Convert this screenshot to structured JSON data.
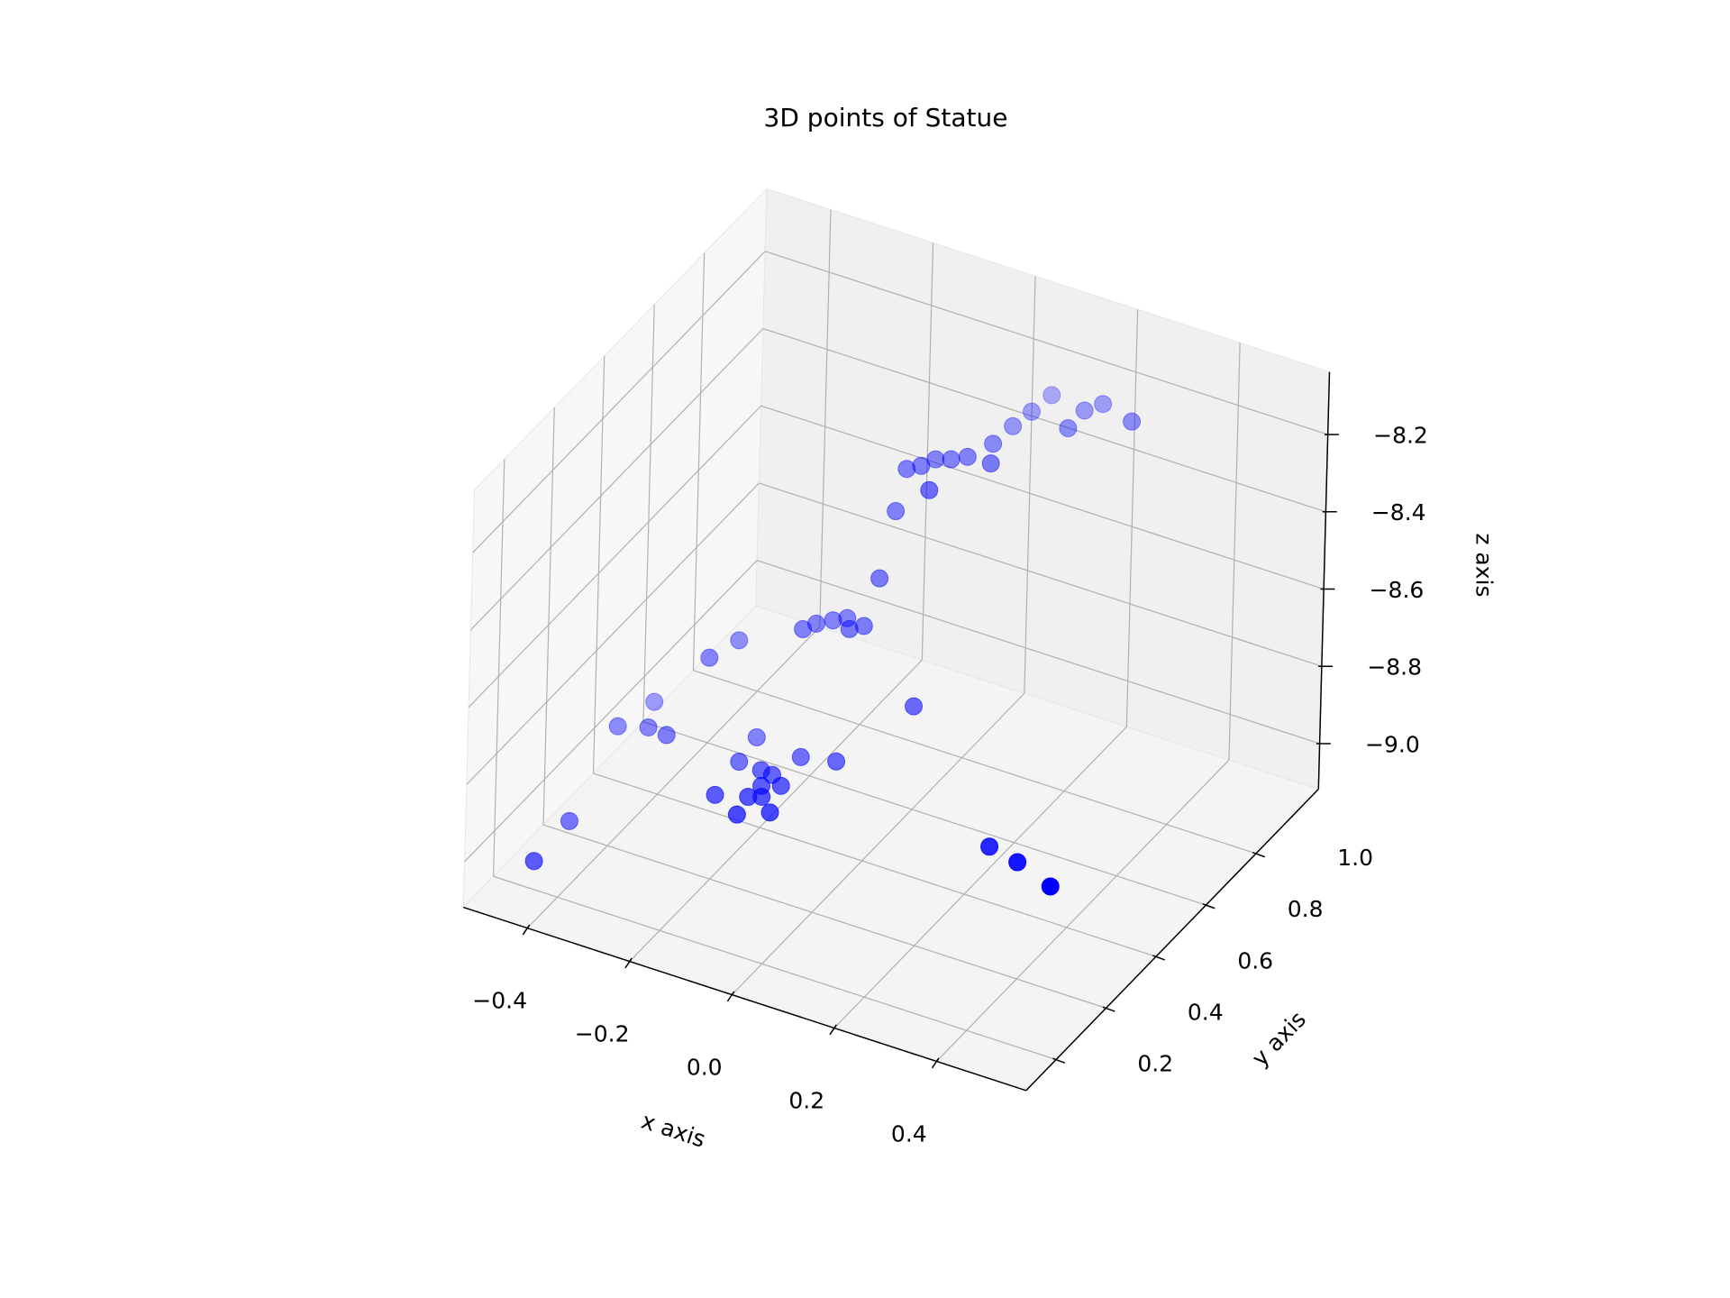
{
  "chart_data": {
    "type": "scatter3d",
    "title": "3D points of Statue",
    "x_label": "x axis",
    "y_label": "y axis",
    "z_label": "z axis",
    "color": "#0000ff",
    "x": [
      0.265,
      0.197,
      0.18,
      0.108,
      0.102,
      0.095,
      0.091,
      0.072,
      0.051,
      0.028,
      0.016,
      -0.001,
      0.063,
      0.116,
      0.179,
      -0.015,
      -0.018,
      -0.129,
      -0.117,
      -0.097,
      -0.079,
      -0.06,
      -0.043,
      -0.237,
      -0.256,
      0.059,
      -0.362,
      -0.381,
      -0.334,
      -0.296,
      -0.188,
      -0.179,
      -0.094,
      -0.035,
      -0.134,
      -0.111,
      -0.082,
      -0.111,
      -0.115,
      -0.095,
      -0.167,
      -0.106,
      -0.06,
      -0.404,
      -0.399,
      0.286,
      0.35,
      0.434
    ],
    "y": [
      1.1,
      1.124,
      1.019,
      1.101,
      1.033,
      0.972,
      0.901,
      0.838,
      0.815,
      0.8,
      0.767,
      0.744,
      0.703,
      0.841,
      1.087,
      0.733,
      0.68,
      0.606,
      0.635,
      0.661,
      0.681,
      0.651,
      0.674,
      0.574,
      0.494,
      0.671,
      0.497,
      0.39,
      0.416,
      0.411,
      0.553,
      0.464,
      0.537,
      0.558,
      0.46,
      0.457,
      0.433,
      0.414,
      0.369,
      0.382,
      0.343,
      0.306,
      0.344,
      0.25,
      0.098,
      0.516,
      0.497,
      0.457
    ],
    "z": [
      -8.2,
      -8.2,
      -8.2,
      -8.2,
      -8.2,
      -8.2,
      -8.2,
      -8.2,
      -8.2,
      -8.2,
      -8.2,
      -8.2,
      -8.2,
      -8.2,
      -8.2,
      -8.308,
      -8.448,
      -8.578,
      -8.578,
      -8.578,
      -8.578,
      -8.578,
      -8.578,
      -8.632,
      -8.632,
      -8.74,
      -8.794,
      -8.794,
      -8.794,
      -8.794,
      -8.848,
      -8.848,
      -8.848,
      -8.848,
      -8.848,
      -8.848,
      -8.848,
      -8.848,
      -8.848,
      -8.848,
      -8.848,
      -8.848,
      -8.848,
      -8.956,
      -8.956,
      -8.902,
      -8.902,
      -8.902
    ],
    "xlim": [
      -0.525,
      0.575
    ],
    "ylim": [
      0.08,
      1.25
    ],
    "zlim": [
      -9.118,
      -8.038
    ],
    "xticks": [
      {
        "value": -0.4,
        "label": "−0.4"
      },
      {
        "value": -0.2,
        "label": "−0.2"
      },
      {
        "value": 0,
        "label": "0.0"
      },
      0.2,
      0.4
    ],
    "yticks": [
      0.2,
      0.4,
      0.6,
      0.8,
      {
        "value": 1.0,
        "label": "1.0"
      }
    ],
    "zticks": [
      {
        "value": -9.0,
        "label": "−9.0"
      },
      {
        "value": -8.8,
        "label": "−8.8"
      },
      {
        "value": -8.6,
        "label": "−8.6"
      },
      {
        "value": -8.4,
        "label": "−8.4"
      },
      {
        "value": -8.2,
        "label": "−8.2"
      }
    ],
    "grid": true
  }
}
